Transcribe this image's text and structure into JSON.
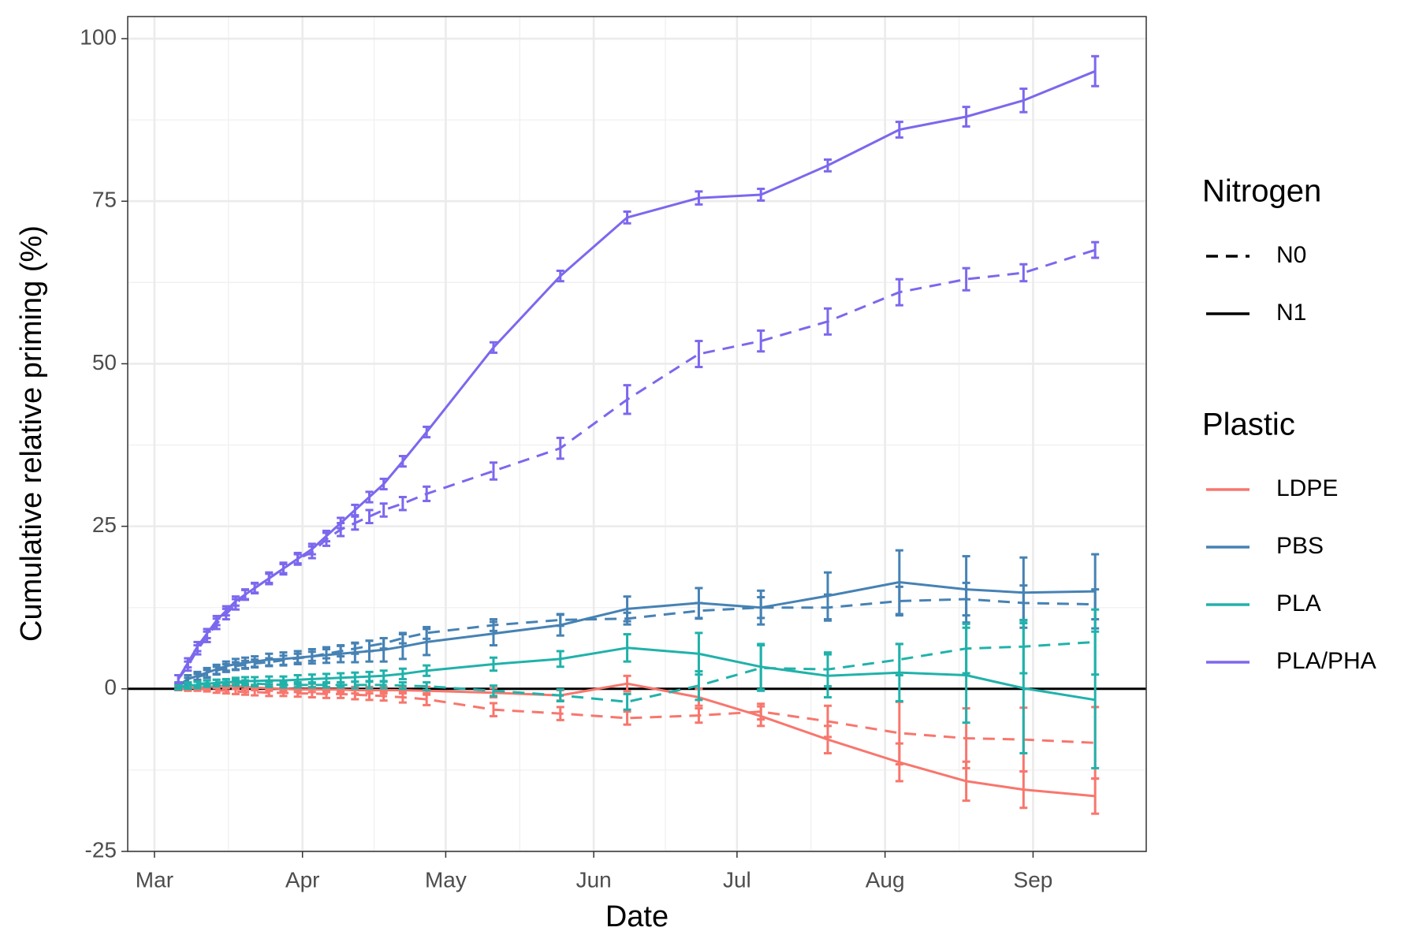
{
  "chart_data": {
    "type": "line",
    "x_label": "Date",
    "y_label": "Cumulative relative priming (%)",
    "x": [
      65,
      67,
      69,
      71,
      73,
      75,
      77,
      79,
      81,
      84,
      87,
      90,
      93,
      96,
      99,
      102,
      105,
      108,
      112,
      117,
      131,
      145,
      159,
      174,
      187,
      201,
      216,
      230,
      242,
      257
    ],
    "xlim": [
      54.4,
      267.7
    ],
    "xticks": [
      {
        "value": 60,
        "label": "Mar"
      },
      {
        "value": 91,
        "label": "Apr"
      },
      {
        "value": 121,
        "label": "May"
      },
      {
        "value": 152,
        "label": "Jun"
      },
      {
        "value": 182,
        "label": "Jul"
      },
      {
        "value": 213,
        "label": "Aug"
      },
      {
        "value": 244,
        "label": "Sep"
      }
    ],
    "ylim": [
      -25,
      103.4
    ],
    "yticks": [
      -25,
      0,
      25,
      50,
      75,
      100
    ],
    "grid": true,
    "minor_grid": true,
    "hline": 0,
    "legends": [
      {
        "title": "Nitrogen",
        "items": [
          {
            "label": "N0",
            "dash": "dashed"
          },
          {
            "label": "N1",
            "dash": "solid"
          }
        ]
      },
      {
        "title": "Plastic",
        "items": [
          {
            "label": "LDPE",
            "color": "#f8766d"
          },
          {
            "label": "PBS",
            "color": "#4682b4"
          },
          {
            "label": "PLA",
            "color": "#20b2aa"
          },
          {
            "label": "PLA/PHA",
            "color": "#7b68ee"
          }
        ]
      }
    ],
    "series": [
      {
        "plastic": "LDPE",
        "nitrogen": "N0",
        "values": [
          0,
          0,
          0,
          -0.1,
          -0.2,
          -0.3,
          -0.4,
          -0.5,
          -0.5,
          -0.6,
          -0.6,
          -0.7,
          -0.7,
          -0.8,
          -0.8,
          -0.9,
          -1,
          -1.1,
          -1.3,
          -1.6,
          -3.2,
          -3.8,
          -4.5,
          -4.1,
          -3.5,
          -5,
          -6.8,
          -7.6,
          -7.8,
          -8.3
        ],
        "errors": [
          0.2,
          0.3,
          0.3,
          0.3,
          0.4,
          0.4,
          0.4,
          0.4,
          0.5,
          0.5,
          0.5,
          0.5,
          0.6,
          0.6,
          0.6,
          0.7,
          0.7,
          0.7,
          0.8,
          0.9,
          1.0,
          1.0,
          1.0,
          1.1,
          1.2,
          2.4,
          4.8,
          4.6,
          4.9,
          5.5
        ]
      },
      {
        "plastic": "LDPE",
        "nitrogen": "N1",
        "values": [
          0,
          0.1,
          0.2,
          0.3,
          0.4,
          0.5,
          0.4,
          0.3,
          0.2,
          0.1,
          0,
          -0.1,
          -0.1,
          -0.1,
          -0.1,
          -0.2,
          -0.2,
          -0.2,
          -0.2,
          -0.3,
          -0.6,
          -1,
          0.8,
          -1.3,
          -4.2,
          -7.8,
          -11.3,
          -14.2,
          -15.5,
          -16.5
        ],
        "errors": [
          0.2,
          0.3,
          0.3,
          0.3,
          0.3,
          0.3,
          0.4,
          0.4,
          0.4,
          0.4,
          0.4,
          0.4,
          0.4,
          0.4,
          0.4,
          0.5,
          0.5,
          0.5,
          0.5,
          0.6,
          0.7,
          0.8,
          1.2,
          1.3,
          1.5,
          2.1,
          2.9,
          3.0,
          2.8,
          2.7
        ]
      },
      {
        "plastic": "PBS",
        "nitrogen": "N0",
        "values": [
          0.5,
          1.2,
          1.8,
          2.3,
          2.8,
          3.2,
          3.5,
          3.7,
          3.9,
          4.1,
          4.4,
          4.7,
          5,
          5.4,
          5.8,
          6.2,
          6.6,
          7,
          7.8,
          8.6,
          9.8,
          10.6,
          10.8,
          12,
          12.5,
          12.5,
          13.5,
          13.8,
          13.2,
          13
        ],
        "errors": [
          0.4,
          0.5,
          0.5,
          0.6,
          0.6,
          0.6,
          0.6,
          0.6,
          0.6,
          0.6,
          0.7,
          0.7,
          0.7,
          0.7,
          0.8,
          0.8,
          0.8,
          0.8,
          0.8,
          0.9,
          0.9,
          0.9,
          0.9,
          1.2,
          1.6,
          2.0,
          2.2,
          2.5,
          2.7,
          2.3
        ]
      },
      {
        "plastic": "PBS",
        "nitrogen": "N1",
        "values": [
          0.5,
          1.5,
          2,
          2.5,
          3,
          3.5,
          3.8,
          4,
          4.2,
          4.5,
          4.6,
          4.8,
          5,
          5.2,
          5.4,
          5.6,
          5.8,
          6,
          6.5,
          7.2,
          8.5,
          9.8,
          12.3,
          13.2,
          12.5,
          14.3,
          16.4,
          15.3,
          14.8,
          15
        ],
        "errors": [
          0.5,
          0.6,
          0.6,
          0.7,
          0.7,
          0.7,
          0.8,
          0.8,
          0.8,
          0.9,
          1.0,
          1.0,
          1.1,
          1.2,
          1.3,
          1.5,
          1.6,
          1.8,
          1.9,
          2.0,
          1.8,
          1.6,
          1.9,
          2.3,
          2.6,
          3.6,
          4.9,
          5.1,
          5.4,
          5.7
        ]
      },
      {
        "plastic": "PLA",
        "nitrogen": "N0",
        "values": [
          0.2,
          0.5,
          0.7,
          0.9,
          1,
          1,
          1,
          0.9,
          0.8,
          0.7,
          0.6,
          0.6,
          0.6,
          0.6,
          0.6,
          0.6,
          0.6,
          0.6,
          0.5,
          0.4,
          -0.3,
          -1,
          -2,
          0.5,
          3.2,
          3,
          4.5,
          6.2,
          6.5,
          7.2
        ],
        "errors": [
          0.3,
          0.4,
          0.4,
          0.4,
          0.4,
          0.4,
          0.4,
          0.4,
          0.4,
          0.4,
          0.4,
          0.4,
          0.4,
          0.4,
          0.4,
          0.5,
          0.5,
          0.5,
          0.5,
          0.6,
          0.8,
          0.9,
          1.2,
          2.2,
          3.5,
          2.6,
          2.4,
          3.8,
          4.1,
          5.0
        ]
      },
      {
        "plastic": "PLA",
        "nitrogen": "N1",
        "values": [
          0.3,
          0.5,
          0.6,
          0.8,
          0.9,
          1,
          1.1,
          1.2,
          1.2,
          1.3,
          1.3,
          1.4,
          1.5,
          1.6,
          1.7,
          1.8,
          1.9,
          2,
          2.3,
          2.8,
          3.8,
          4.6,
          6.3,
          5.4,
          3.4,
          2,
          2.5,
          2.1,
          0.1,
          -1.7
        ],
        "errors": [
          0.4,
          0.5,
          0.5,
          0.5,
          0.5,
          0.5,
          0.6,
          0.6,
          0.6,
          0.6,
          0.6,
          0.7,
          0.7,
          0.7,
          0.7,
          0.7,
          0.7,
          0.8,
          0.8,
          0.8,
          1.0,
          1.2,
          2.1,
          3.2,
          3.5,
          3.3,
          4.4,
          7.3,
          10.0,
          10.5
        ]
      },
      {
        "plastic": "PLA/PHA",
        "nitrogen": "N0",
        "values": [
          1.5,
          3.5,
          6,
          8,
          10,
          11.5,
          13,
          14.5,
          15.5,
          17,
          18.5,
          20,
          21,
          23,
          24.5,
          25.5,
          26.5,
          27.5,
          28.5,
          30,
          33.5,
          37,
          44.5,
          51.5,
          53.5,
          56.5,
          61,
          63,
          64,
          67.5
        ],
        "errors": [
          0.6,
          0.7,
          0.7,
          0.8,
          0.8,
          0.8,
          0.8,
          0.8,
          0.8,
          0.9,
          0.9,
          0.9,
          0.9,
          1.0,
          1.0,
          1.0,
          1.0,
          1.0,
          1.0,
          1.1,
          1.3,
          1.6,
          2.2,
          2.0,
          1.6,
          2.0,
          2.0,
          1.7,
          1.3,
          1.2
        ]
      },
      {
        "plastic": "PLA/PHA",
        "nitrogen": "N1",
        "values": [
          1.5,
          4,
          6.5,
          8.5,
          10.5,
          12,
          13.5,
          14.5,
          15.5,
          17,
          18.5,
          20,
          21.5,
          23.5,
          25.5,
          27.5,
          29.5,
          31.5,
          35,
          39.5,
          52.5,
          63.5,
          72.5,
          75.5,
          76,
          80.5,
          86,
          88,
          90.5,
          95
        ],
        "errors": [
          0.6,
          0.7,
          0.7,
          0.7,
          0.7,
          0.7,
          0.7,
          0.7,
          0.7,
          0.7,
          0.7,
          0.7,
          0.8,
          0.8,
          0.8,
          0.8,
          0.8,
          0.8,
          0.8,
          0.8,
          0.8,
          0.8,
          0.9,
          1.0,
          0.9,
          0.9,
          1.2,
          1.5,
          1.8,
          2.3
        ]
      }
    ]
  }
}
